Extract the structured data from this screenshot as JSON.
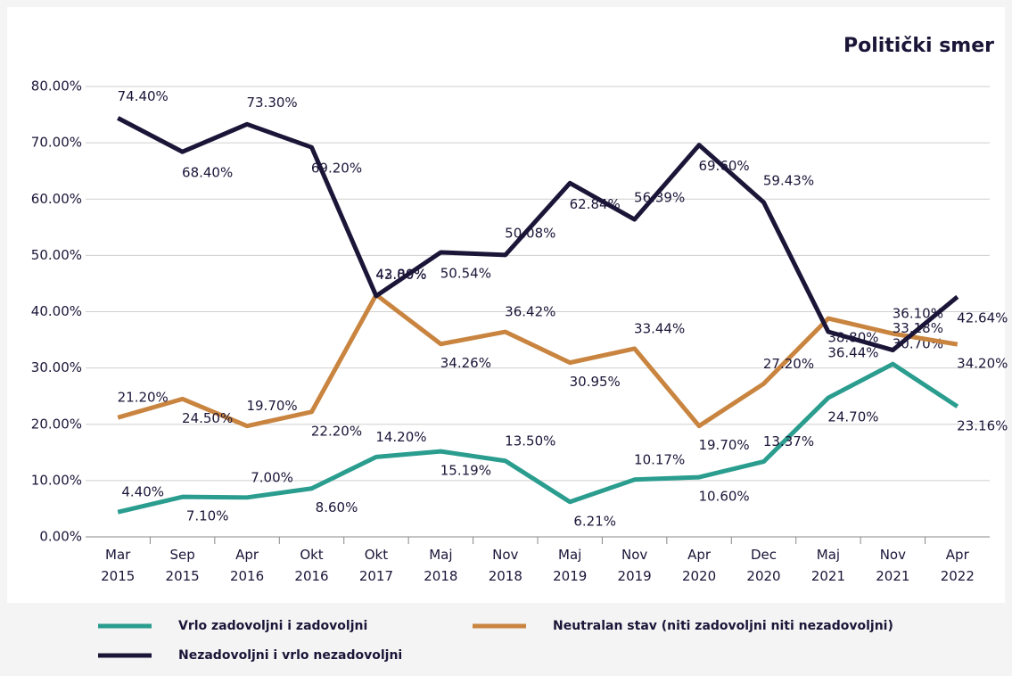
{
  "chart_data": {
    "type": "line",
    "title": "Politički smer",
    "categories": [
      "Mar 2015",
      "Sep 2015",
      "Apr 2016",
      "Okt 2016",
      "Okt 2017",
      "Maj 2018",
      "Nov 2018",
      "Maj 2019",
      "Nov 2019",
      "Apr 2020",
      "Dec 2020",
      "Maj 2021",
      "Nov 2021",
      "Apr 2022"
    ],
    "series": [
      {
        "name": "Vrlo zadovoljni i zadovoljni",
        "color": "#2a9d8f",
        "values": [
          4.4,
          7.1,
          7.0,
          8.6,
          14.2,
          15.19,
          13.5,
          6.21,
          10.17,
          10.6,
          13.37,
          24.7,
          30.7,
          23.16
        ],
        "value_labels": [
          "4.40%",
          "7.10%",
          "7.00%",
          "8.60%",
          "14.20%",
          "15.19%",
          "13.50%",
          "6.21%",
          "10.17%",
          "10.60%",
          "13.37%",
          "24.70%",
          "30.70%",
          "23.16%"
        ]
      },
      {
        "name": "Neutralan stav (niti zadovoljni niti nezadovoljni)",
        "color": "#c98540",
        "values": [
          21.2,
          24.5,
          19.7,
          22.2,
          43.0,
          34.26,
          36.42,
          30.95,
          33.44,
          19.7,
          27.2,
          38.8,
          36.1,
          34.2
        ],
        "value_labels": [
          "21.20%",
          "24.50%",
          "19.70%",
          "22.20%",
          "43.00%",
          "34.26%",
          "36.42%",
          "30.95%",
          "33.44%",
          "19.70%",
          "27.20%",
          "38.80%",
          "36.10%",
          "34.20%"
        ]
      },
      {
        "name": "Nezadovoljni i vrlo nezadovoljni",
        "color": "#1b1538",
        "values": [
          74.4,
          68.4,
          73.3,
          69.2,
          42.8,
          50.54,
          50.08,
          62.84,
          56.39,
          69.6,
          59.43,
          36.44,
          33.18,
          42.64
        ],
        "value_labels": [
          "74.40%",
          "68.40%",
          "73.30%",
          "69.20%",
          "42.80%",
          "50.54%",
          "50.08%",
          "62.84%",
          "56.39%",
          "69.60%",
          "59.43%",
          "36.44%",
          "33.18%",
          "42.64%"
        ]
      }
    ],
    "ylim": [
      0,
      80
    ],
    "yticks": [
      {
        "value": 0,
        "label": "0.00%"
      },
      {
        "value": 10,
        "label": "10.00%"
      },
      {
        "value": 20,
        "label": "20.00%"
      },
      {
        "value": 30,
        "label": "30.00%"
      },
      {
        "value": 40,
        "label": "40.00%"
      },
      {
        "value": 50,
        "label": "50.00%"
      },
      {
        "value": 60,
        "label": "60.00%"
      },
      {
        "value": 70,
        "label": "70.00%"
      },
      {
        "value": 80,
        "label": "80.00%"
      }
    ],
    "grid": true,
    "legend": "bottom"
  }
}
